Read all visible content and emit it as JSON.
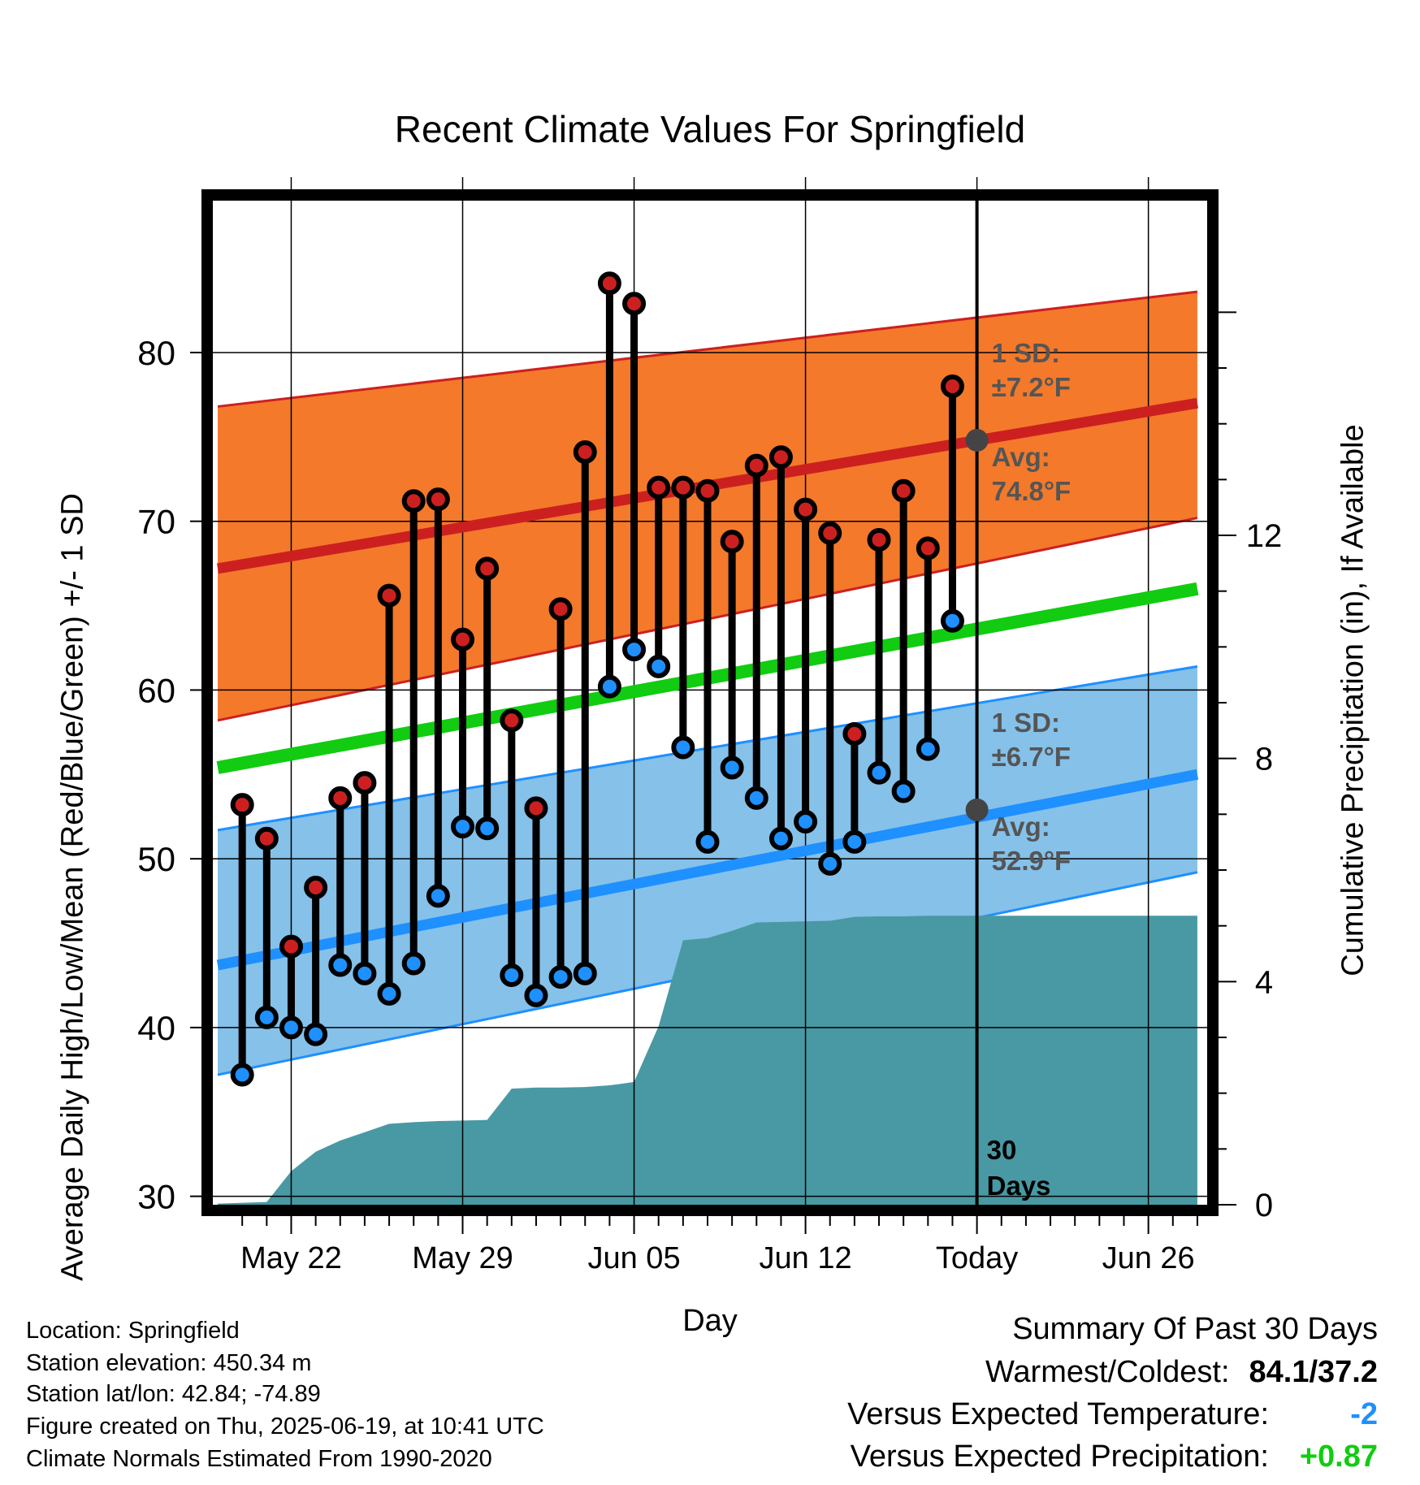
{
  "chart_data": {
    "type": "line",
    "title": "Recent Climate Values For Springfield",
    "xlabel": "Day",
    "ylabel": "Average Daily High/Low/Mean (Red/Blue/Green) +/- 1 SD",
    "y2label": "Cumulative Precipitation (in), If Available",
    "ylim": [
      29.5,
      89
    ],
    "y2lim": [
      0,
      18
    ],
    "yticks": [
      30,
      40,
      50,
      60,
      70,
      80
    ],
    "y2ticks": [
      0,
      4,
      8,
      12
    ],
    "xticks": [
      {
        "day": 0,
        "label": "May 22"
      },
      {
        "day": 7,
        "label": "May 29"
      },
      {
        "day": 14,
        "label": "Jun 05"
      },
      {
        "day": 21,
        "label": "Jun 12"
      },
      {
        "day": 28,
        "label": "Today"
      },
      {
        "day": 35,
        "label": "Jun 26"
      }
    ],
    "x_range_days": [
      -3.2,
      37.4
    ],
    "today_day": 28,
    "today_marker_label": "30 Days",
    "grid": true,
    "series": [
      {
        "name": "Normal High",
        "color": "#cc2020",
        "x": [
          -3,
          37
        ],
        "values": [
          67.2,
          77.0
        ]
      },
      {
        "name": "Normal High +1 SD",
        "color": "#cc2020",
        "x": [
          -3,
          37
        ],
        "values": [
          76.8,
          83.6
        ]
      },
      {
        "name": "Normal High -1 SD",
        "color": "#cc2020",
        "x": [
          -3,
          37
        ],
        "values": [
          58.2,
          70.2
        ]
      },
      {
        "name": "Normal Mean",
        "color": "#11cc11",
        "x": [
          -3,
          37
        ],
        "values": [
          55.4,
          66.0
        ]
      },
      {
        "name": "Normal Low",
        "color": "#1e90ff",
        "x": [
          -3,
          37
        ],
        "values": [
          43.7,
          55.0
        ]
      },
      {
        "name": "Normal Low +1 SD",
        "color": "#1e90ff",
        "x": [
          -3,
          37
        ],
        "values": [
          51.7,
          61.4
        ]
      },
      {
        "name": "Normal Low -1 SD",
        "color": "#1e90ff",
        "x": [
          -3,
          37
        ],
        "values": [
          37.2,
          49.2
        ]
      }
    ],
    "daily": {
      "days": [
        -2,
        -1,
        0,
        1,
        2,
        3,
        4,
        5,
        6,
        7,
        8,
        9,
        10,
        11,
        12,
        13,
        14,
        15,
        16,
        17,
        18,
        19,
        20,
        21,
        22,
        23,
        24,
        25,
        26,
        27
      ],
      "highs": [
        53.2,
        51.2,
        44.8,
        48.3,
        53.6,
        54.5,
        65.6,
        71.2,
        71.3,
        63.0,
        67.2,
        58.2,
        53.0,
        64.8,
        74.1,
        84.1,
        82.9,
        72.0,
        72.0,
        71.8,
        68.8,
        73.3,
        73.8,
        70.7,
        69.3,
        57.4,
        68.9,
        71.8,
        68.4,
        78.0
      ],
      "lows": [
        37.2,
        40.6,
        40.0,
        39.6,
        43.7,
        43.2,
        42.0,
        43.8,
        47.8,
        51.9,
        51.8,
        43.1,
        41.9,
        43.0,
        43.2,
        60.2,
        62.4,
        61.4,
        56.6,
        51.0,
        55.4,
        53.6,
        51.2,
        52.2,
        49.7,
        51.0,
        55.1,
        54.0,
        56.5,
        64.1
      ]
    },
    "precip": {
      "x": [
        -3,
        -1,
        0,
        1,
        2,
        3,
        4,
        5,
        6,
        7,
        8,
        9,
        10,
        11,
        12,
        13,
        14,
        15,
        16,
        17,
        18,
        19,
        20,
        21,
        22,
        23,
        24,
        25,
        26,
        27,
        28,
        37
      ],
      "values": [
        0.02,
        0.05,
        0.6,
        0.95,
        1.15,
        1.3,
        1.45,
        1.48,
        1.5,
        1.51,
        1.52,
        2.08,
        2.1,
        2.1,
        2.11,
        2.14,
        2.2,
        3.2,
        4.74,
        4.78,
        4.91,
        5.06,
        5.07,
        5.08,
        5.09,
        5.16,
        5.17,
        5.17,
        5.18,
        5.18,
        5.18,
        5.18
      ]
    },
    "annotations": [
      {
        "series": "high",
        "sd_label": "1 SD:",
        "sd_value": "±7.2°F",
        "avg_label": "Avg:",
        "avg_value": "74.8°F",
        "avg_at_today": 74.8
      },
      {
        "series": "low",
        "sd_label": "1 SD:",
        "sd_value": "±6.7°F",
        "avg_label": "Avg:",
        "avg_value": "52.9°F",
        "avg_at_today": 52.9
      }
    ],
    "colors": {
      "high_band": "#f4792b",
      "high_edge": "#cc2020",
      "low_band": "#85c1e9",
      "low_edge": "#1e90ff",
      "mean_line": "#11cc11",
      "precip_fill": "#4899a3",
      "high_dot": "#cc2020",
      "low_dot": "#1e90ff",
      "annotation_text": "#555555",
      "today_dot": "#444444"
    }
  },
  "footer": {
    "location": "Location: Springfield",
    "elevation": "Station elevation: 450.34 m",
    "latlon": "Station lat/lon: 42.84; -74.89",
    "created": "Figure created on Thu, 2025-06-19, at 10:41 UTC",
    "normals": "Climate Normals Estimated From 1990-2020"
  },
  "summary": {
    "heading": "Summary Of Past 30 Days",
    "warmest_label": "Warmest/Coldest:",
    "warmest_value": "84.1/37.2",
    "temp_label": "Versus Expected Temperature:",
    "temp_value": "-2",
    "temp_color": "#1e90ff",
    "precip_label": "Versus Expected Precipitation:",
    "precip_value": "+0.87",
    "precip_color": "#11cc11"
  }
}
